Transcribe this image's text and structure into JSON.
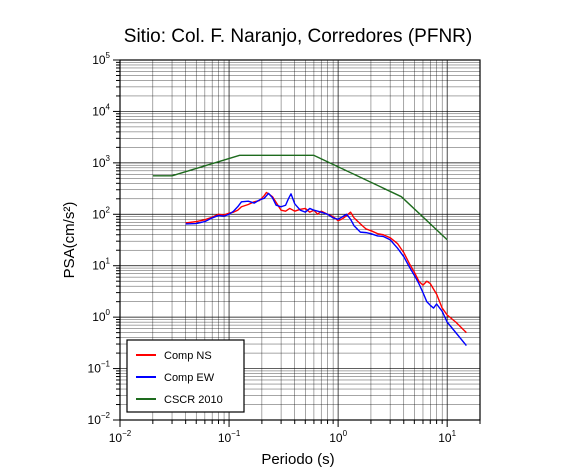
{
  "chart_data": {
    "type": "line",
    "title": "Sitio: Col. F. Naranjo, Corredores (PFNR)",
    "xlabel": "Periodo (s)",
    "ylabel": "PSA(cm/s²)",
    "xscale": "log",
    "yscale": "log",
    "xlim": [
      0.01,
      20
    ],
    "ylim": [
      0.01,
      100000
    ],
    "grid": true,
    "legend_position": "bottom-left",
    "x_ticks": [
      {
        "base": "10",
        "exp": "−2",
        "value": 0.01
      },
      {
        "base": "10",
        "exp": "−1",
        "value": 0.1
      },
      {
        "base": "10",
        "exp": "0",
        "value": 1
      },
      {
        "base": "10",
        "exp": "1",
        "value": 10
      }
    ],
    "y_ticks": [
      {
        "base": "10",
        "exp": "−2",
        "value": 0.01
      },
      {
        "base": "10",
        "exp": "−1",
        "value": 0.1
      },
      {
        "base": "10",
        "exp": "0",
        "value": 1
      },
      {
        "base": "10",
        "exp": "1",
        "value": 10
      },
      {
        "base": "10",
        "exp": "2",
        "value": 100
      },
      {
        "base": "10",
        "exp": "3",
        "value": 1000
      },
      {
        "base": "10",
        "exp": "4",
        "value": 10000
      },
      {
        "base": "10",
        "exp": "5",
        "value": 100000
      }
    ],
    "series": [
      {
        "name": "Comp NS",
        "color": "#ff0000",
        "points": [
          [
            0.04,
            68
          ],
          [
            0.05,
            72
          ],
          [
            0.06,
            78
          ],
          [
            0.07,
            88
          ],
          [
            0.08,
            100
          ],
          [
            0.09,
            97
          ],
          [
            0.1,
            105
          ],
          [
            0.11,
            110
          ],
          [
            0.12,
            120
          ],
          [
            0.13,
            140
          ],
          [
            0.15,
            155
          ],
          [
            0.17,
            175
          ],
          [
            0.19,
            185
          ],
          [
            0.21,
            230
          ],
          [
            0.22,
            265
          ],
          [
            0.23,
            250
          ],
          [
            0.25,
            220
          ],
          [
            0.27,
            170
          ],
          [
            0.3,
            120
          ],
          [
            0.33,
            115
          ],
          [
            0.36,
            130
          ],
          [
            0.4,
            115
          ],
          [
            0.45,
            125
          ],
          [
            0.5,
            130
          ],
          [
            0.55,
            110
          ],
          [
            0.6,
            120
          ],
          [
            0.65,
            100
          ],
          [
            0.7,
            115
          ],
          [
            0.8,
            100
          ],
          [
            0.9,
            90
          ],
          [
            1.0,
            75
          ],
          [
            1.1,
            82
          ],
          [
            1.2,
            95
          ],
          [
            1.3,
            110
          ],
          [
            1.4,
            85
          ],
          [
            1.6,
            65
          ],
          [
            1.8,
            52
          ],
          [
            2.0,
            48
          ],
          [
            2.3,
            42
          ],
          [
            2.6,
            40
          ],
          [
            3.0,
            35
          ],
          [
            3.5,
            27
          ],
          [
            4.0,
            18
          ],
          [
            4.5,
            11
          ],
          [
            5.0,
            7.5
          ],
          [
            5.5,
            5.0
          ],
          [
            6.0,
            4.2
          ],
          [
            6.5,
            5.0
          ],
          [
            7.0,
            4.5
          ],
          [
            7.5,
            3.5
          ],
          [
            8.0,
            2.8
          ],
          [
            9.0,
            1.5
          ],
          [
            10.0,
            1.1
          ],
          [
            12.0,
            0.8
          ],
          [
            15.0,
            0.5
          ]
        ]
      },
      {
        "name": "Comp EW",
        "color": "#0000ff",
        "points": [
          [
            0.04,
            65
          ],
          [
            0.05,
            66
          ],
          [
            0.06,
            72
          ],
          [
            0.07,
            85
          ],
          [
            0.08,
            95
          ],
          [
            0.09,
            92
          ],
          [
            0.1,
            100
          ],
          [
            0.11,
            115
          ],
          [
            0.12,
            140
          ],
          [
            0.13,
            175
          ],
          [
            0.15,
            180
          ],
          [
            0.17,
            165
          ],
          [
            0.19,
            190
          ],
          [
            0.21,
            205
          ],
          [
            0.23,
            255
          ],
          [
            0.25,
            210
          ],
          [
            0.27,
            150
          ],
          [
            0.3,
            140
          ],
          [
            0.33,
            150
          ],
          [
            0.35,
            200
          ],
          [
            0.37,
            250
          ],
          [
            0.4,
            160
          ],
          [
            0.45,
            120
          ],
          [
            0.5,
            110
          ],
          [
            0.55,
            130
          ],
          [
            0.6,
            120
          ],
          [
            0.65,
            115
          ],
          [
            0.7,
            110
          ],
          [
            0.8,
            100
          ],
          [
            0.9,
            85
          ],
          [
            1.0,
            80
          ],
          [
            1.1,
            90
          ],
          [
            1.2,
            100
          ],
          [
            1.3,
            80
          ],
          [
            1.4,
            60
          ],
          [
            1.6,
            45
          ],
          [
            1.8,
            44
          ],
          [
            2.0,
            42
          ],
          [
            2.3,
            38
          ],
          [
            2.6,
            37
          ],
          [
            3.0,
            32
          ],
          [
            3.5,
            22
          ],
          [
            4.0,
            15
          ],
          [
            4.5,
            9.5
          ],
          [
            5.0,
            6.5
          ],
          [
            5.5,
            4.5
          ],
          [
            6.0,
            3.0
          ],
          [
            6.5,
            2.0
          ],
          [
            7.0,
            1.7
          ],
          [
            7.5,
            1.5
          ],
          [
            8.0,
            1.8
          ],
          [
            9.0,
            1.3
          ],
          [
            10.0,
            0.8
          ],
          [
            12.0,
            0.5
          ],
          [
            15.0,
            0.28
          ]
        ]
      },
      {
        "name": "CSCR 2010",
        "color": "#1e6b1e",
        "points": [
          [
            0.02,
            560
          ],
          [
            0.03,
            560
          ],
          [
            0.125,
            1400
          ],
          [
            0.6,
            1400
          ],
          [
            3.8,
            220
          ],
          [
            10.0,
            32
          ]
        ]
      }
    ]
  }
}
